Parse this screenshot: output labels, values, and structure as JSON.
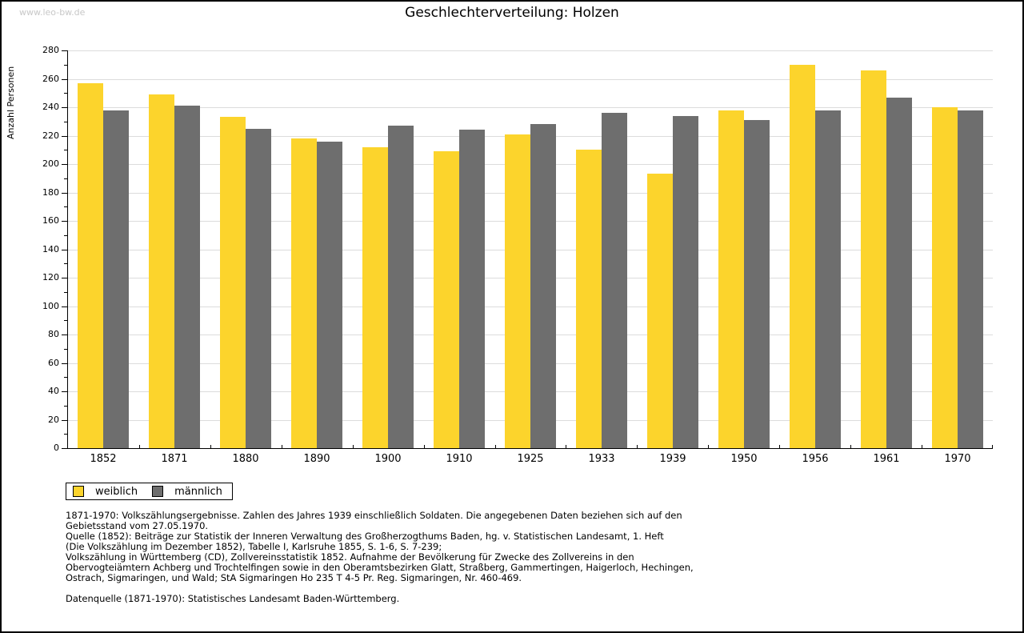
{
  "watermark": "www.leo-bw.de",
  "title": "Geschlechterverteilung: Holzen",
  "legend": {
    "items": [
      {
        "label": "weiblich",
        "color": "#fcd42c"
      },
      {
        "label": "männlich",
        "color": "#6e6e6e"
      }
    ]
  },
  "footnotes": {
    "lines": [
      "1871-1970: Volkszählungsergebnisse. Zahlen des Jahres 1939 einschließlich Soldaten. Die angegebenen Daten beziehen sich auf den",
      "Gebietsstand vom 27.05.1970.",
      "Quelle (1852): Beiträge zur Statistik der Inneren Verwaltung des Großherzogthums Baden, hg. v. Statistischen Landesamt, 1. Heft",
      "(Die Volkszählung im Dezember 1852), Tabelle I, Karlsruhe 1855, S. 1-6, S. 7-239;",
      "Volkszählung in Württemberg (CD), Zollvereinsstatistik 1852. Aufnahme der Bevölkerung für Zwecke des Zollvereins in den",
      "Obervogteiämtern Achberg und Trochtelfingen sowie in den Oberamtsbezirken Glatt, Straßberg, Gammertingen, Haigerloch, Hechingen,",
      "Ostrach, Sigmaringen, und Wald; StA Sigmaringen Ho 235 T 4-5 Pr. Reg. Sigmaringen, Nr. 460-469."
    ],
    "source": "Datenquelle (1871-1970): Statistisches Landesamt Baden-Württemberg."
  },
  "chart_data": {
    "type": "bar",
    "title": "Geschlechterverteilung: Holzen",
    "xlabel": "",
    "ylabel": "Anzahl Personen",
    "categories": [
      "1852",
      "1871",
      "1880",
      "1890",
      "1900",
      "1910",
      "1925",
      "1933",
      "1939",
      "1950",
      "1956",
      "1961",
      "1970"
    ],
    "series": [
      {
        "name": "weiblich",
        "color": "#fcd42c",
        "values": [
          257,
          249,
          233,
          218,
          212,
          209,
          221,
          210,
          193,
          238,
          270,
          266,
          240
        ]
      },
      {
        "name": "männlich",
        "color": "#6e6e6e",
        "values": [
          238,
          241,
          225,
          216,
          227,
          224,
          228,
          236,
          234,
          231,
          238,
          247,
          238
        ]
      }
    ],
    "ylim": [
      0,
      280
    ],
    "ytick_step": 20,
    "ytick_minor_step": 10,
    "grid": true,
    "legend_position": "bottom-left"
  },
  "colors": {
    "grid": "#dcdcdc",
    "axis": "#000000",
    "watermark": "#c8c8c8"
  }
}
